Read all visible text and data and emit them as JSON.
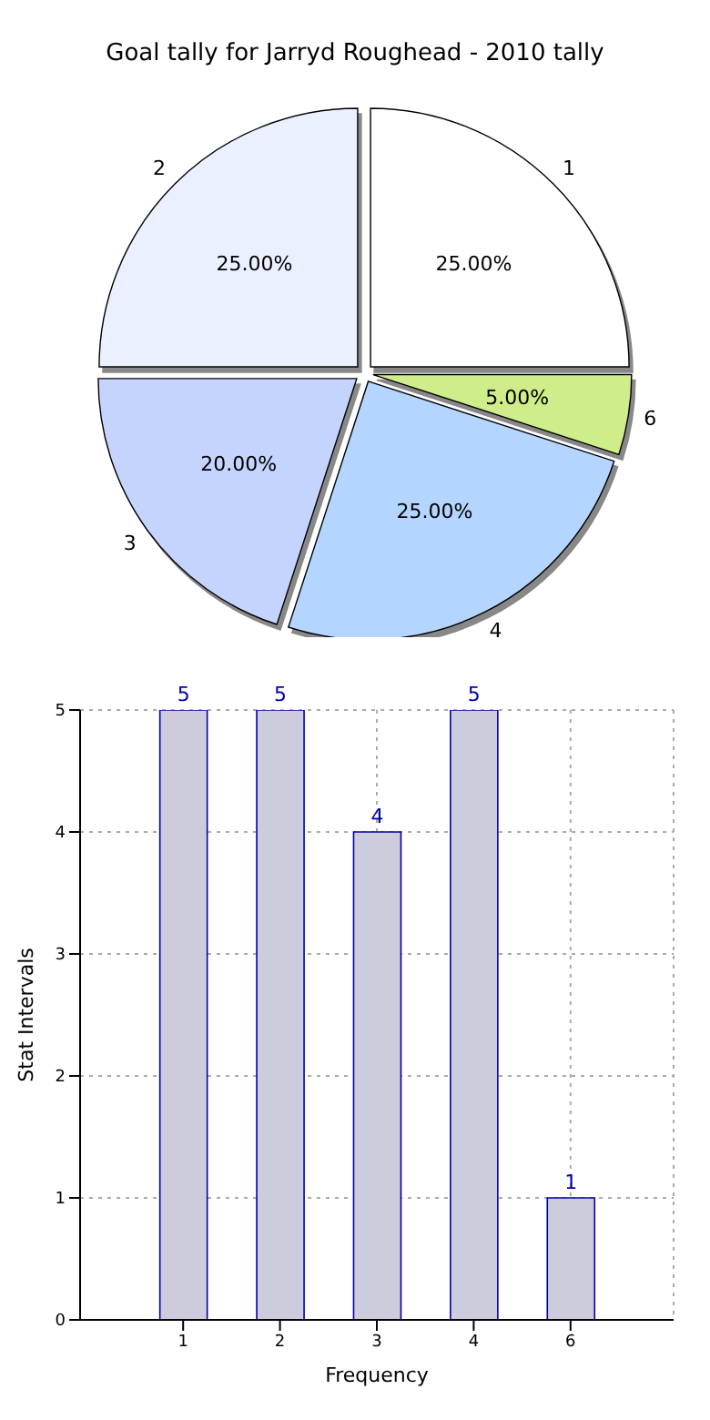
{
  "chart_data": [
    {
      "type": "pie",
      "title": "Goal tally for Jarryd Roughead - 2010 tally",
      "categories": [
        "1",
        "2",
        "3",
        "4",
        "6"
      ],
      "values": [
        25,
        25,
        20,
        25,
        5
      ],
      "colors": [
        "#ffffff",
        "#eaf0ff",
        "#c4d4ff",
        "#b3d5ff",
        "#cfed8a"
      ],
      "value_labels": [
        "25.00%",
        "25.00%",
        "20.00%",
        "25.00%",
        "5.00%"
      ]
    },
    {
      "type": "bar",
      "categories": [
        "1",
        "2",
        "3",
        "4",
        "6"
      ],
      "values": [
        5,
        5,
        4,
        5,
        1
      ],
      "color": "#ccccdd",
      "ylim": [
        0,
        5
      ],
      "yticks": [
        0,
        1,
        2,
        3,
        4,
        5
      ],
      "xlabel": "Frequency",
      "ylabel": "Stat Intervals",
      "grid": true,
      "data_labels": true
    }
  ]
}
